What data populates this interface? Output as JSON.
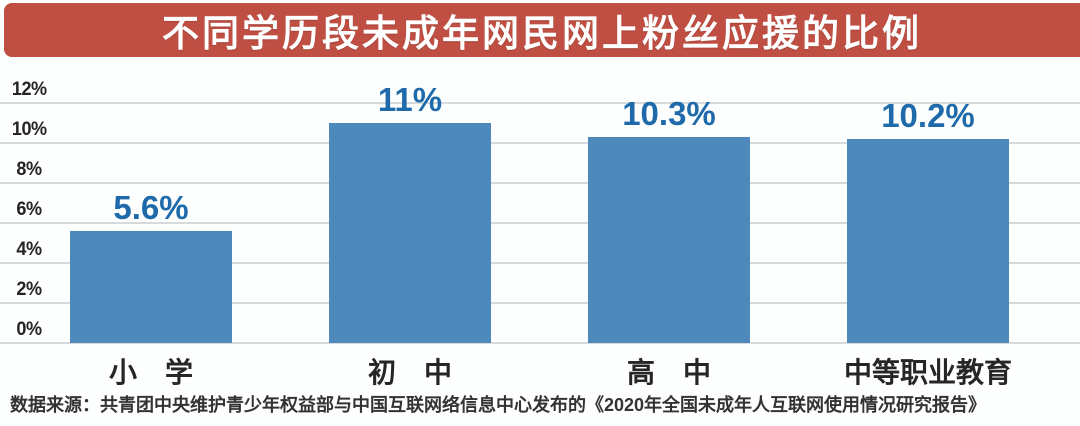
{
  "banner": {
    "title": "不同学历段未成年网民网上粉丝应援的比例"
  },
  "chart_data": {
    "type": "bar",
    "title": "不同学历段未成年网民网上粉丝应援的比例",
    "categories": [
      "小　学",
      "初　中",
      "高　中",
      "中等职业教育"
    ],
    "values": [
      5.6,
      11,
      10.3,
      10.2
    ],
    "value_labels": [
      "5.6%",
      "11%",
      "10.3%",
      "10.2%"
    ],
    "y_tick_labels": [
      "12%",
      "10%",
      "8%",
      "6%",
      "4%",
      "2%",
      "0%"
    ],
    "y_tick_values": [
      12,
      10,
      8,
      6,
      4,
      2,
      0
    ],
    "ylim": [
      0,
      12
    ],
    "xlabel": "",
    "ylabel": "",
    "grid": true,
    "legend": false
  },
  "source": {
    "text": "数据来源：共青团中央维护青少年权益部与中国互联网络信息中心发布的《2020年全国未成年人互联网使用情况研究报告》"
  },
  "colors": {
    "banner_bg": "#c04f43",
    "title_text": "#ffffff",
    "bar_fill": "#4e89bc",
    "value_label": "#1e6aab",
    "axis_text": "#242424",
    "gridline": "#d7dadd",
    "source_text": "#333333",
    "background": "#fdfefe"
  }
}
